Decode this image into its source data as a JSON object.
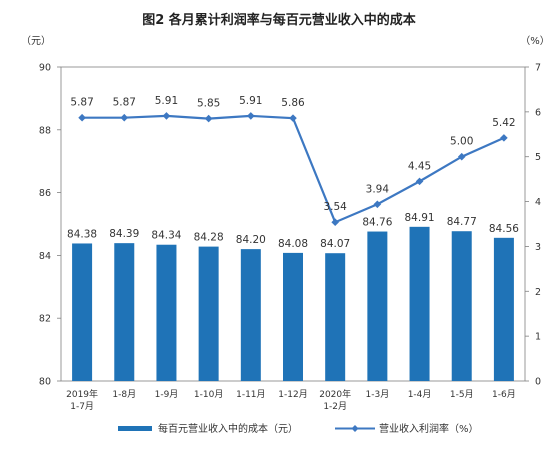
{
  "colors": {
    "bar": "#1f73b7",
    "line": "#3d78c2",
    "axis": "#808080"
  },
  "chart_data": {
    "type": "bar+line",
    "title": "图2  各月累计利润率与每百元营业收入中的成本",
    "left_axis_unit": "（元）",
    "right_axis_unit": "（%）",
    "categories": [
      "2019年\n1-7月",
      "1-8月",
      "1-9月",
      "1-10月",
      "1-11月",
      "1-12月",
      "2020年\n1-2月",
      "1-3月",
      "1-4月",
      "1-5月",
      "1-6月"
    ],
    "left_ylim": [
      80,
      90
    ],
    "left_yticks": [
      80,
      82,
      84,
      86,
      88,
      90
    ],
    "right_ylim": [
      0,
      7
    ],
    "right_yticks": [
      0,
      1,
      2,
      3,
      4,
      5,
      6,
      7
    ],
    "series": [
      {
        "name": "每百元营业收入中的成本（元）",
        "type": "bar",
        "axis": "left",
        "values": [
          84.38,
          84.39,
          84.34,
          84.28,
          84.2,
          84.08,
          84.07,
          84.76,
          84.91,
          84.77,
          84.56
        ],
        "labels": [
          "84.38",
          "84.39",
          "84.34",
          "84.28",
          "84.20",
          "84.08",
          "84.07",
          "84.76",
          "84.91",
          "84.77",
          "84.56"
        ]
      },
      {
        "name": "营业收入利润率（%）",
        "type": "line",
        "axis": "right",
        "values": [
          5.87,
          5.87,
          5.91,
          5.85,
          5.91,
          5.86,
          3.54,
          3.94,
          4.45,
          5.0,
          5.42
        ],
        "labels": [
          "5.87",
          "5.87",
          "5.91",
          "5.85",
          "5.91",
          "5.86",
          "3.54",
          "3.94",
          "4.45",
          "5.00",
          "5.42"
        ]
      }
    ],
    "legend_position": "bottom"
  }
}
